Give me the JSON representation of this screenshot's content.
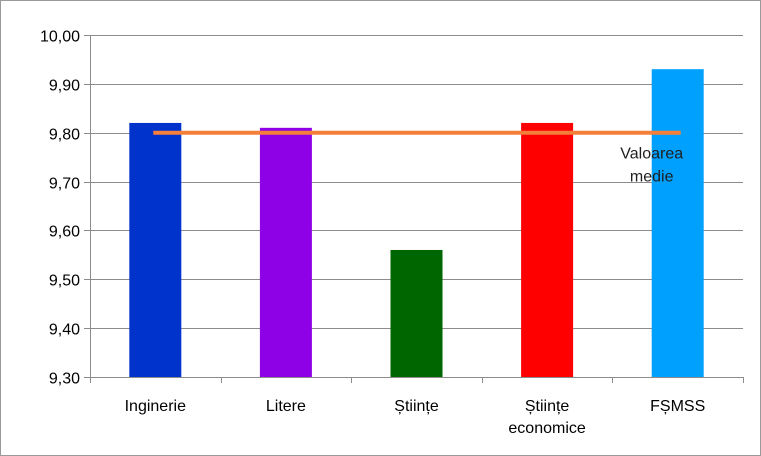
{
  "chart_data": {
    "type": "bar",
    "title": "",
    "xlabel": "",
    "ylabel": "",
    "categories": [
      [
        "Inginerie"
      ],
      [
        "Litere"
      ],
      [
        "Științe"
      ],
      [
        "Științe",
        "economice"
      ],
      [
        "FȘMSS"
      ]
    ],
    "values": [
      9.82,
      9.81,
      9.56,
      9.82,
      9.93
    ],
    "bar_colors": [
      "#0033cc",
      "#8e00e6",
      "#006600",
      "#ff0000",
      "#00a0ff"
    ],
    "ylim": [
      9.3,
      10.0
    ],
    "yticks": [
      9.3,
      9.4,
      9.5,
      9.6,
      9.7,
      9.8,
      9.9,
      10.0
    ],
    "ytick_labels": [
      "9,30",
      "9,40",
      "9,50",
      "9,60",
      "9,70",
      "9,80",
      "9,90",
      "10,00"
    ],
    "grid": true,
    "reference_line": {
      "value": 9.8,
      "color": "#f47f3b",
      "label": [
        "Valoarea",
        "medie"
      ]
    },
    "colors": {
      "grid": "#8c8c8c",
      "axis": "#8c8c8c",
      "frame": "#9a9a9a"
    }
  }
}
